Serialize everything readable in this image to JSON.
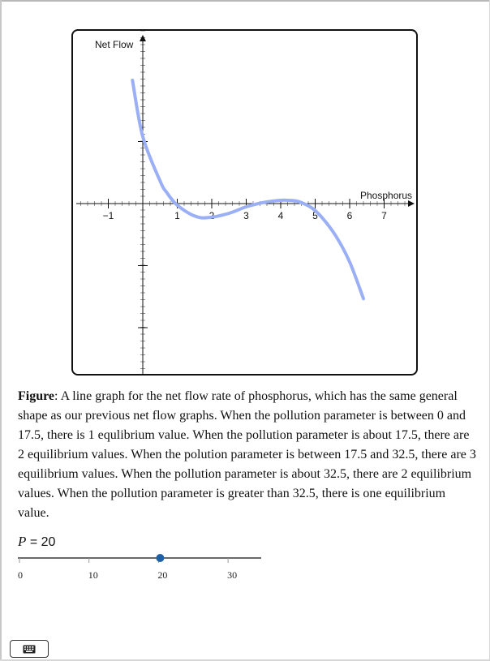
{
  "graph": {
    "y_axis_label": "Net Flow",
    "x_axis_label": "Phosphorus",
    "x_tick_labels": [
      "−1",
      "1",
      "2",
      "3",
      "4",
      "5",
      "6",
      "7"
    ],
    "curve_color": "#9aaff5"
  },
  "chart_data": {
    "type": "line",
    "title": "",
    "xlabel": "Phosphorus",
    "ylabel": "Net Flow",
    "xlim": [
      -2,
      8
    ],
    "ticks": [
      -1,
      1,
      2,
      3,
      4,
      5,
      6,
      7
    ],
    "series": [
      {
        "name": "net flow rate",
        "x": [
          -0.3,
          0,
          0.5,
          0.7,
          1,
          1.5,
          1.9,
          2.5,
          3,
          3.5,
          4,
          4.2,
          4.5,
          4.9,
          5.2,
          5.6,
          6,
          6.4
        ],
        "y": [
          11.4,
          6.2,
          2.1,
          1.0,
          -0.15,
          -1.15,
          -1.3,
          -0.9,
          -0.3,
          0.1,
          0.3,
          0.3,
          0.2,
          -0.4,
          -1.3,
          -3.0,
          -5.4,
          -8.8
        ]
      }
    ]
  },
  "caption": {
    "bold": "Figure",
    "text": ": A line graph for the net flow rate of phosphorus, which has the same general shape as our previous net flow graphs. When the pollution parameter is between 0 and 17.5, there is 1 equlibrium value. When the pollution parameter is about 17.5, there are 2 equilibrium values. When the polution parameter is between 17.5 and 32.5, there are 3 equilibrium values. When the pollution parameter is about 32.5, there are 2 equilibrium values. When the pollution parameter is greater than 32.5, there is one equilibrium value."
  },
  "slider": {
    "param_name": "P",
    "equals_text": "= 20",
    "value": 20,
    "min": 0,
    "max": 35,
    "tick_values": [
      0,
      10,
      20,
      30
    ],
    "tick_labels": [
      "0",
      "10",
      "20",
      "30"
    ],
    "handle_color": "#1f5fa8"
  },
  "keyboard_button": {
    "icon": "keyboard-icon"
  }
}
